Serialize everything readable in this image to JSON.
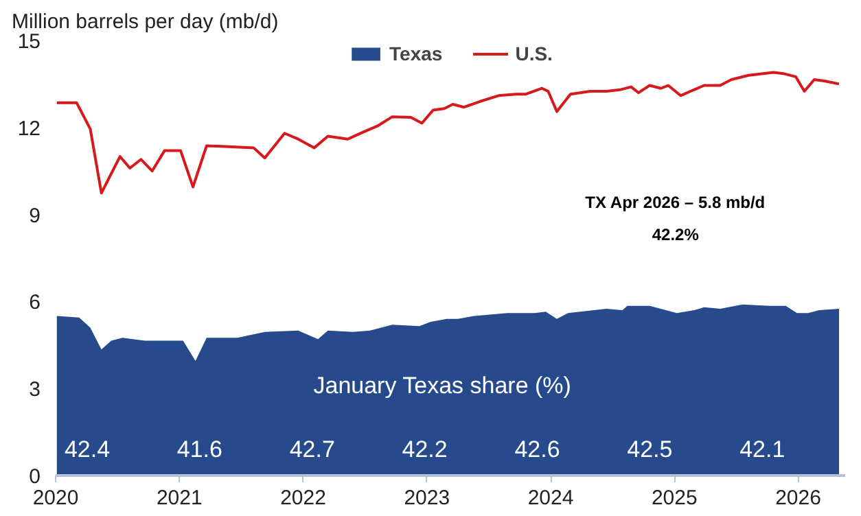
{
  "chart_data": {
    "type": "line",
    "ylabel": "Million barrels per day (mb/d)",
    "xlim": [
      2020,
      2026.38
    ],
    "xticks": [
      2020,
      2021,
      2022,
      2023,
      2024,
      2025,
      2026
    ],
    "ylim": [
      0,
      15
    ],
    "yticks": [
      0,
      3,
      6,
      9,
      12,
      15
    ],
    "grid": false,
    "legend": "top",
    "line_style": "solid",
    "marker": "none",
    "series": [
      {
        "name": "Texas",
        "type": "area",
        "color": "#264a8c",
        "x": [
          2020.01,
          2020.19,
          2020.28,
          2020.37,
          2020.45,
          2020.54,
          2020.72,
          2021.03,
          2021.13,
          2021.22,
          2021.47,
          2021.69,
          2021.96,
          2022.12,
          2022.2,
          2022.4,
          2022.54,
          2022.72,
          2022.94,
          2023.03,
          2023.16,
          2023.25,
          2023.38,
          2023.65,
          2023.87,
          2023.96,
          2024.05,
          2024.14,
          2024.45,
          2024.58,
          2024.62,
          2024.8,
          2025.02,
          2025.16,
          2025.24,
          2025.37,
          2025.55,
          2025.77,
          2025.9,
          2025.99,
          2026.08,
          2026.17,
          2026.33
        ],
        "values": [
          5.5,
          5.45,
          5.1,
          4.35,
          4.65,
          4.75,
          4.65,
          4.65,
          3.95,
          4.75,
          4.75,
          4.95,
          5.0,
          4.7,
          5.0,
          4.95,
          5.0,
          5.2,
          5.15,
          5.3,
          5.4,
          5.4,
          5.5,
          5.6,
          5.6,
          5.65,
          5.4,
          5.6,
          5.75,
          5.7,
          5.85,
          5.85,
          5.6,
          5.7,
          5.8,
          5.75,
          5.9,
          5.85,
          5.85,
          5.6,
          5.6,
          5.7,
          5.75
        ]
      },
      {
        "name": "U.S.",
        "color": "#d7191c",
        "x": [
          2020.01,
          2020.17,
          2020.28,
          2020.37,
          2020.52,
          2020.6,
          2020.69,
          2020.78,
          2020.88,
          2021.01,
          2021.11,
          2021.22,
          2021.34,
          2021.6,
          2021.69,
          2021.85,
          2021.96,
          2022.09,
          2022.2,
          2022.36,
          2022.49,
          2022.6,
          2022.72,
          2022.87,
          2022.96,
          2023.05,
          2023.14,
          2023.21,
          2023.3,
          2023.43,
          2023.58,
          2023.72,
          2023.8,
          2023.93,
          2023.98,
          2024.05,
          2024.16,
          2024.32,
          2024.45,
          2024.56,
          2024.65,
          2024.71,
          2024.8,
          2024.89,
          2024.95,
          2025.05,
          2025.13,
          2025.24,
          2025.37,
          2025.46,
          2025.6,
          2025.8,
          2025.89,
          2025.98,
          2026.05,
          2026.13,
          2026.22,
          2026.33
        ],
        "values": [
          12.85,
          12.85,
          11.95,
          9.74,
          11.0,
          10.6,
          10.9,
          10.5,
          11.2,
          11.2,
          9.95,
          11.37,
          11.35,
          11.3,
          10.95,
          11.8,
          11.6,
          11.3,
          11.7,
          11.6,
          11.85,
          12.05,
          12.37,
          12.35,
          12.15,
          12.6,
          12.65,
          12.8,
          12.7,
          12.9,
          13.1,
          13.15,
          13.15,
          13.35,
          13.25,
          12.55,
          13.15,
          13.25,
          13.25,
          13.3,
          13.4,
          13.2,
          13.45,
          13.35,
          13.45,
          13.1,
          13.25,
          13.45,
          13.45,
          13.65,
          13.8,
          13.9,
          13.85,
          13.75,
          13.25,
          13.65,
          13.6,
          13.5
        ]
      }
    ],
    "annotations": [
      "TX Apr 2026 – 5.8 mb/d",
      "42.2%",
      "January Texas share (%)",
      "42.4",
      "41.6",
      "42.7",
      "42.2",
      "42.6",
      "42.5",
      "42.1"
    ]
  }
}
